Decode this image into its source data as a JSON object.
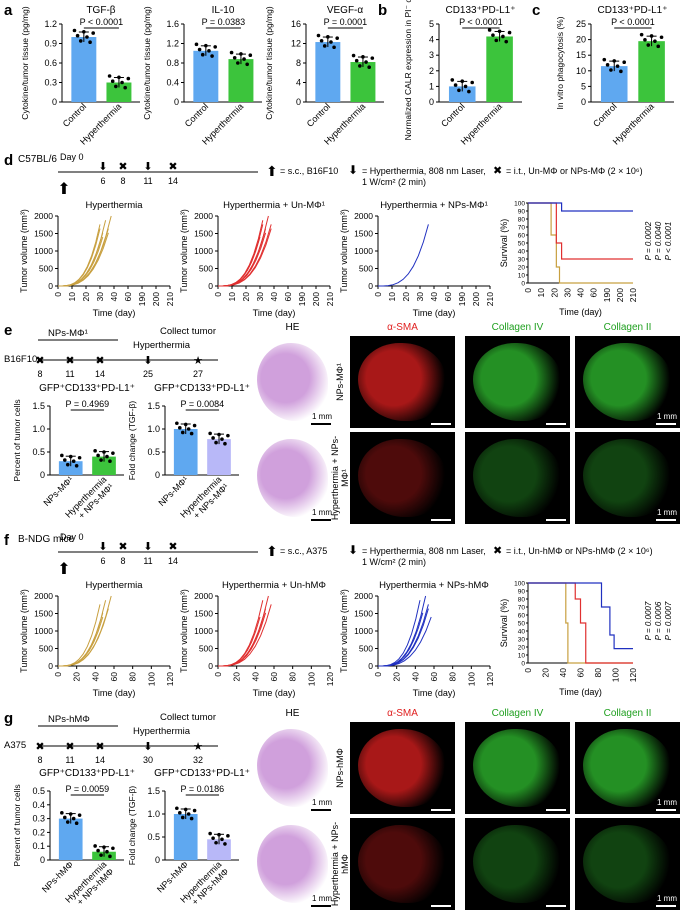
{
  "panels": {
    "a": {
      "label": "a",
      "charts": [
        {
          "title": "TGF-β",
          "ylabel": "Cytokine/tumor tissue (pg/mg)",
          "ticks": [
            "0",
            "0.3",
            "0.6",
            "0.9",
            "1.2"
          ],
          "pval": "P < 0.0001",
          "groups": [
            "Control",
            "Hyperthermia"
          ],
          "values": [
            1.0,
            0.3
          ],
          "ymax": 1.2
        },
        {
          "title": "IL-10",
          "ylabel": "Cytokine/tumor tissue (pg/mg)",
          "ticks": [
            "0",
            "0.4",
            "0.8",
            "1.2",
            "1.6"
          ],
          "pval": "P = 0.0383",
          "groups": [
            "Control",
            "Hyperthermia"
          ],
          "values": [
            1.05,
            0.88
          ],
          "ymax": 1.6
        },
        {
          "title": "VEGF-α",
          "ylabel": "Cytokine/tumor tissue (pg/mg)",
          "ticks": [
            "0",
            "4",
            "8",
            "12",
            "16"
          ],
          "pval": "P = 0.0001",
          "groups": [
            "Control",
            "Hyperthermia"
          ],
          "values": [
            12.3,
            8.2
          ],
          "ymax": 16
        }
      ]
    },
    "b": {
      "label": "b",
      "title": "CD133⁺PD-L1⁺",
      "ylabel": "Normalized CALR expression in PI⁻ cells",
      "ticks": [
        "0",
        "1",
        "2",
        "3",
        "4",
        "5"
      ],
      "pval": "P < 0.0001",
      "groups": [
        "Control",
        "Hyperthermia"
      ],
      "values": [
        1.0,
        4.2
      ],
      "ymax": 5
    },
    "c": {
      "label": "c",
      "title": "CD133⁺PD-L1⁺",
      "ylabel": "In vitro phagocytosis (%)",
      "ticks": [
        "0",
        "5",
        "10",
        "15",
        "20",
        "25"
      ],
      "pval": "P < 0.0001",
      "groups": [
        "Control",
        "Hyperthermia"
      ],
      "values": [
        11.5,
        19.5
      ],
      "ymax": 25
    },
    "d": {
      "label": "d",
      "mouse": "C57BL/6",
      "day0": "Day 0",
      "days": [
        "6",
        "8",
        "11",
        "14"
      ],
      "legend1": "= s.c., B16F10",
      "legend2": "= Hyperthermia, 808 nm Laser,",
      "legend2b": "1 W/cm² (2 min)",
      "legend3": "= i.t., Un-MΦ or NPs-MΦ (2 × 10⁶)",
      "titles": [
        "Hyperthermia",
        "Hyperthermia + Un-MΦ¹",
        "Hyperthermia + NPs-MΦ¹"
      ],
      "ylabel": "Tumor volume (mm³)",
      "xlabel": "Time (day)",
      "yticks": [
        "0",
        "500",
        "1000",
        "1500",
        "2000"
      ],
      "xticks": [
        "0",
        "10",
        "20",
        "30",
        "40",
        "60",
        "190",
        "200",
        "210"
      ],
      "surv_ylabel": "Survival (%)",
      "surv_yticks": [
        "0",
        "10",
        "20",
        "30",
        "40",
        "50",
        "60",
        "70",
        "80",
        "90",
        "100"
      ],
      "pvals": [
        "P = 0.0002",
        "P = 0.0040",
        "P < 0.0001"
      ]
    },
    "e": {
      "label": "e",
      "cell": "B16F10",
      "np": "NPs-MΦ¹",
      "hyper": "Hyperthermia",
      "collect": "Collect tumor",
      "days": [
        "8",
        "11",
        "14",
        "25",
        "27"
      ],
      "chart1": {
        "title": "GFP⁺CD133⁺PD-L1⁺",
        "ylabel": "Percent of tumor cells",
        "ticks": [
          "0",
          "0.5",
          "1.0",
          "1.5"
        ],
        "pval": "P = 0.4969",
        "groups": [
          "NPs-MΦ¹",
          "Hyperthermia + NPs-MΦ¹"
        ],
        "values": [
          0.3,
          0.4
        ],
        "ymax": 1.5
      },
      "chart2": {
        "title": "GFP⁺CD133⁺PD-L1⁺",
        "ylabel": "Fold change (TGF-β)",
        "ticks": [
          "0",
          "0.5",
          "1.0",
          "1.5"
        ],
        "pval": "P = 0.0084",
        "groups": [
          "NPs-MΦ¹",
          "Hyperthermia + NPs-MΦ¹"
        ],
        "values": [
          1.0,
          0.78
        ],
        "ymax": 1.5
      },
      "img_cols": [
        "HE",
        "α-SMA",
        "Collagen IV",
        "Collagen II"
      ],
      "rows": [
        "NPs-MΦ¹",
        "Hyperthermia + NPs-MΦ¹"
      ],
      "scale": "1 mm"
    },
    "f": {
      "label": "f",
      "mouse": "B-NDG mice",
      "day0": "Day 0",
      "days": [
        "6",
        "8",
        "11",
        "14"
      ],
      "legend1": "= s.c., A375",
      "legend2": "= Hyperthermia, 808 nm Laser,",
      "legend2b": "1 W/cm² (2 min)",
      "legend3": "= i.t., Un-hMΦ or NPs-hMΦ (2 × 10⁶)",
      "titles": [
        "Hyperthermia",
        "Hyperthermia + Un-hMΦ",
        "Hyperthermia + NPs-hMΦ"
      ],
      "ylabel": "Tumor volume (mm³)",
      "xlabel": "Time (day)",
      "yticks": [
        "0",
        "500",
        "1000",
        "1500",
        "2000"
      ],
      "xticks": [
        "0",
        "20",
        "40",
        "60",
        "80",
        "100",
        "120"
      ],
      "surv_ylabel": "Survival (%)",
      "surv_yticks": [
        "0",
        "10",
        "20",
        "30",
        "40",
        "50",
        "60",
        "70",
        "80",
        "90",
        "100"
      ],
      "pvals": [
        "P = 0.0007",
        "P = 0.0006",
        "P = 0.0007"
      ]
    },
    "g": {
      "label": "g",
      "cell": "A375",
      "np": "NPs-hMΦ",
      "hyper": "Hyperthermia",
      "collect": "Collect tumor",
      "days": [
        "8",
        "11",
        "14",
        "30",
        "32"
      ],
      "chart1": {
        "title": "GFP⁺CD133⁺PD-L1⁺",
        "ylabel": "Percent of tumor cells",
        "ticks": [
          "0",
          "0.1",
          "0.2",
          "0.3",
          "0.4",
          "0.5"
        ],
        "pval": "P = 0.0059",
        "groups": [
          "NPs-hMΦ",
          "Hyperthermia + NPs-hMΦ"
        ],
        "values": [
          0.3,
          0.06
        ],
        "ymax": 0.5
      },
      "chart2": {
        "title": "GFP⁺CD133⁺PD-L1⁺",
        "ylabel": "Fold change (TGF-β)",
        "ticks": [
          "0",
          "0.5",
          "1.0",
          "1.5"
        ],
        "pval": "P = 0.0186",
        "groups": [
          "NPs-hMΦ",
          "Hyperthermia + NPs-hMΦ"
        ],
        "values": [
          1.0,
          0.45
        ],
        "ymax": 1.5
      },
      "img_cols": [
        "HE",
        "α-SMA",
        "Collagen IV",
        "Collagen II"
      ],
      "rows": [
        "NPs-hMΦ",
        "Hyperthermia + NPs-hMΦ"
      ],
      "scale": "1 mm"
    }
  },
  "colors": {
    "control": "#5fa8f0",
    "treat": "#3cc43c",
    "tan": "#c8a040",
    "red": "#e03030",
    "blue": "#2030c0",
    "he": "#c080d0"
  }
}
